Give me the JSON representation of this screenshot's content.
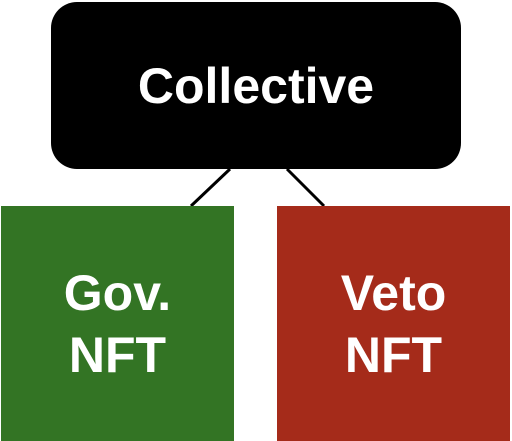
{
  "root": {
    "label": "Collective",
    "color": "#000000"
  },
  "children": [
    {
      "line1": "Gov.",
      "line2": "NFT",
      "color": "#337424"
    },
    {
      "line1": "Veto",
      "line2": "NFT",
      "color": "#a52b1a"
    }
  ],
  "text_color": "#ffffff",
  "connector_color": "#000000"
}
